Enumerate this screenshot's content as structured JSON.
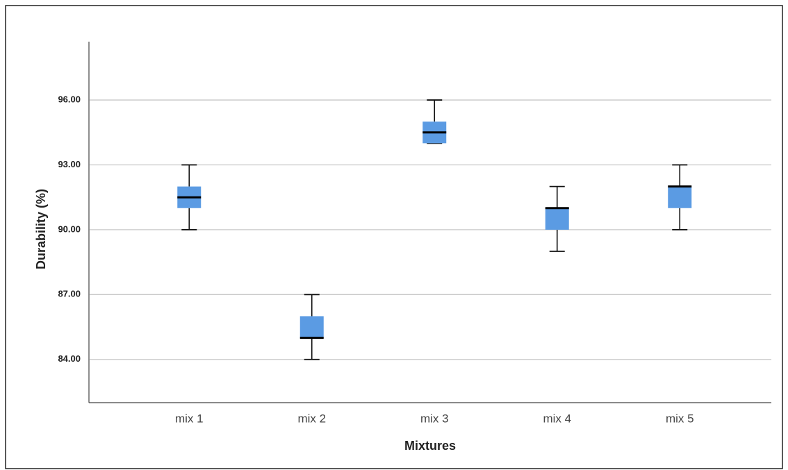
{
  "chart_data": {
    "type": "box",
    "x_label": "Mixtures",
    "y_label": "Durability (%)",
    "categories": [
      "mix 1",
      "mix 2",
      "mix 3",
      "mix 4",
      "mix 5"
    ],
    "min": [
      90,
      84,
      94,
      89,
      90
    ],
    "q1": [
      91,
      85,
      94,
      90,
      91
    ],
    "median": [
      91.5,
      85,
      94.5,
      91,
      92
    ],
    "q3": [
      92,
      86,
      95,
      91,
      92
    ],
    "max": [
      93,
      87,
      96,
      92,
      93
    ],
    "color": "#5b9be3",
    "ylim": [
      82,
      98.7
    ],
    "yticks": [
      {
        "value": 84,
        "label": "84.00"
      },
      {
        "value": 87,
        "label": "87.00"
      },
      {
        "value": 90,
        "label": "90.00"
      },
      {
        "value": 93,
        "label": "93.00"
      },
      {
        "value": 96,
        "label": "96.00"
      }
    ],
    "grid": true
  }
}
